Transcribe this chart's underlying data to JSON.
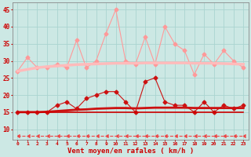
{
  "x": [
    0,
    1,
    2,
    3,
    4,
    5,
    6,
    7,
    8,
    9,
    10,
    11,
    12,
    13,
    14,
    15,
    16,
    17,
    18,
    19,
    20,
    21,
    22,
    23
  ],
  "background_color": "#cce8e4",
  "grid_color": "#aad4d0",
  "xlabel": "Vent moyen/en rafales ( km/h )",
  "xlabel_color": "#cc0000",
  "tick_color": "#cc0000",
  "ylim": [
    7,
    47
  ],
  "xlim": [
    -0.5,
    23.5
  ],
  "yticks": [
    10,
    15,
    20,
    25,
    30,
    35,
    40,
    45
  ],
  "series": [
    {
      "name": "rafales_max_line",
      "color": "#ff9999",
      "linewidth": 0.8,
      "marker": "D",
      "markersize": 2.5,
      "linestyle": "-",
      "values": [
        27,
        31,
        28,
        28,
        29,
        28,
        36,
        28,
        30,
        38,
        45,
        30,
        29,
        37,
        29,
        40,
        35,
        33,
        26,
        32,
        29,
        33,
        30,
        28
      ]
    },
    {
      "name": "rafales_trend",
      "color": "#ffbbbb",
      "linewidth": 2.5,
      "marker": null,
      "markersize": 0,
      "linestyle": "-",
      "values": [
        27.0,
        27.5,
        28.0,
        28.3,
        28.5,
        28.7,
        28.9,
        29.0,
        29.1,
        29.2,
        29.3,
        29.3,
        29.3,
        29.4,
        29.4,
        29.4,
        29.4,
        29.4,
        29.3,
        29.3,
        29.3,
        29.2,
        29.1,
        29.0
      ]
    },
    {
      "name": "vent_max_line",
      "color": "#cc1111",
      "linewidth": 0.8,
      "marker": "D",
      "markersize": 2.5,
      "linestyle": "-",
      "values": [
        15,
        15,
        15,
        15,
        17,
        18,
        16,
        19,
        20,
        21,
        21,
        18,
        15,
        24,
        25,
        18,
        17,
        17,
        15,
        18,
        15,
        17,
        16,
        17
      ]
    },
    {
      "name": "vent_trend",
      "color": "#cc1111",
      "linewidth": 2.0,
      "marker": null,
      "markersize": 0,
      "linestyle": "-",
      "values": [
        15.0,
        15.0,
        15.0,
        15.1,
        15.3,
        15.5,
        15.7,
        15.8,
        16.0,
        16.1,
        16.2,
        16.2,
        16.1,
        16.2,
        16.3,
        16.3,
        16.3,
        16.3,
        16.2,
        16.2,
        16.2,
        16.2,
        16.2,
        16.2
      ]
    },
    {
      "name": "vent_flat",
      "color": "#cc0000",
      "linewidth": 1.2,
      "marker": null,
      "markersize": 0,
      "linestyle": "-",
      "values": [
        15,
        15,
        15,
        15,
        15,
        15,
        15,
        15,
        15,
        15,
        15,
        15,
        15,
        15,
        15,
        15,
        15,
        15,
        15,
        15,
        15,
        15,
        15,
        15
      ]
    },
    {
      "name": "dashed_bottom",
      "color": "#ee4444",
      "linewidth": 0.8,
      "marker": 4,
      "markersize": 3,
      "linestyle": "--",
      "values": [
        8,
        8,
        8,
        8,
        8,
        8,
        8,
        8,
        8,
        8,
        8,
        8,
        8,
        8,
        8,
        8,
        8,
        8,
        8,
        8,
        8,
        8,
        8,
        8
      ]
    }
  ]
}
